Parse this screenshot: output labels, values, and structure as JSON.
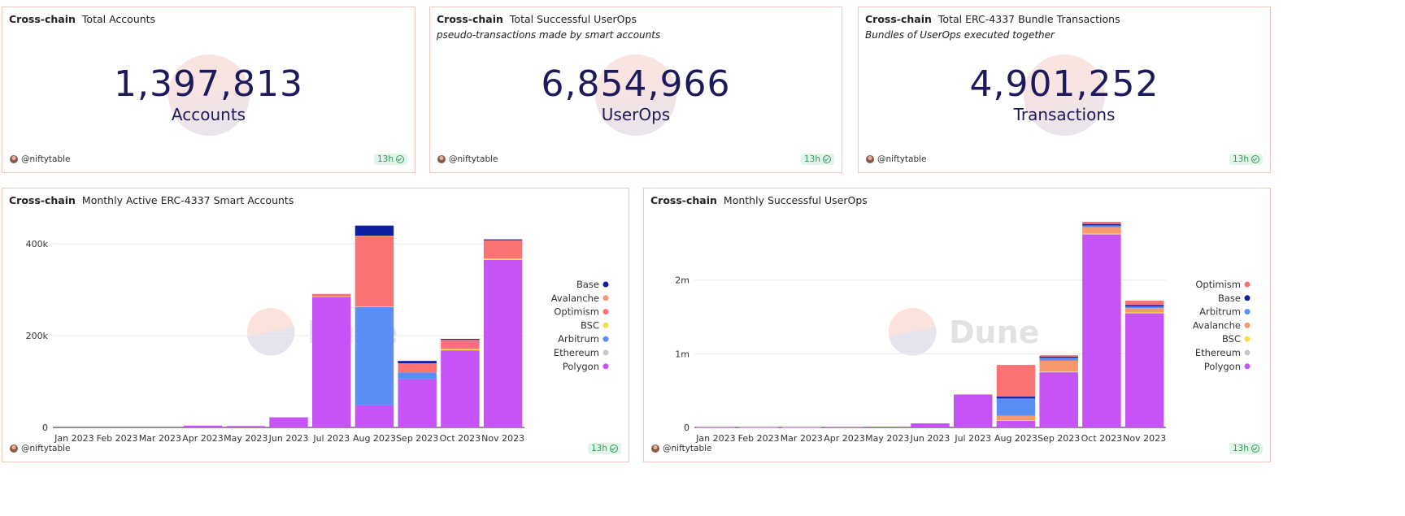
{
  "author": "@niftytable",
  "freshness": "13h",
  "counters": [
    {
      "chain": "Cross-chain",
      "title": "Total Accounts",
      "subtitle": "",
      "value": "1,397,813",
      "unit": "Accounts"
    },
    {
      "chain": "Cross-chain",
      "title": "Total Successful UserOps",
      "subtitle": "pseudo-transactions made by smart accounts",
      "value": "6,854,966",
      "unit": "UserOps"
    },
    {
      "chain": "Cross-chain",
      "title": "Total ERC-4337 Bundle Transactions",
      "subtitle": "Bundles of UserOps executed together",
      "value": "4,901,252",
      "unit": "Transactions"
    }
  ],
  "watermark": "Dune",
  "chart_data": [
    {
      "type": "bar",
      "stacked": true,
      "chain": "Cross-chain",
      "title": "Monthly Active ERC-4337 Smart Accounts",
      "categories": [
        "Jan 2023",
        "Feb 2023",
        "Mar 2023",
        "Apr 2023",
        "May 2023",
        "Jun 2023",
        "Jul 2023",
        "Aug 2023",
        "Sep 2023",
        "Oct 2023",
        "Nov 2023"
      ],
      "ylim": [
        0,
        450000
      ],
      "yticks": [
        0,
        200000,
        400000
      ],
      "ytick_labels": [
        "0",
        "200k",
        "400k"
      ],
      "legend_position": "right",
      "legend_order": [
        "Base",
        "Avalanche",
        "Optimism",
        "BSC",
        "Arbitrum",
        "Ethereum",
        "Polygon"
      ],
      "stack_order": [
        "Polygon",
        "Ethereum",
        "Arbitrum",
        "BSC",
        "Optimism",
        "Avalanche",
        "Base"
      ],
      "series": [
        {
          "name": "Polygon",
          "color": "#c653f5",
          "values": [
            0,
            0,
            0,
            4000,
            3000,
            22000,
            285000,
            48000,
            105000,
            168000,
            365000
          ]
        },
        {
          "name": "Ethereum",
          "color": "#c8c8c8",
          "values": [
            0,
            0,
            0,
            0,
            0,
            0,
            0,
            0,
            0,
            0,
            0
          ]
        },
        {
          "name": "Arbitrum",
          "color": "#5b8ef5",
          "values": [
            0,
            0,
            0,
            0,
            0,
            0,
            0,
            215000,
            15000,
            0,
            0
          ]
        },
        {
          "name": "BSC",
          "color": "#f3e04a",
          "values": [
            0,
            0,
            0,
            0,
            0,
            0,
            1000,
            1000,
            0,
            3000,
            3000
          ]
        },
        {
          "name": "Optimism",
          "color": "#fb7272",
          "values": [
            0,
            0,
            0,
            0,
            0,
            0,
            5000,
            153000,
            20000,
            20000,
            40000
          ]
        },
        {
          "name": "Avalanche",
          "color": "#f8996d",
          "values": [
            0,
            0,
            0,
            0,
            0,
            0,
            0,
            1000,
            0,
            0,
            0
          ]
        },
        {
          "name": "Base",
          "color": "#0f1fa3",
          "values": [
            0,
            0,
            0,
            0,
            0,
            0,
            0,
            22000,
            5000,
            2000,
            2000
          ]
        }
      ]
    },
    {
      "type": "bar",
      "stacked": true,
      "chain": "Cross-chain",
      "title": "Monthly Successful UserOps",
      "categories": [
        "Jan 2023",
        "Feb 2023",
        "Mar 2023",
        "Apr 2023",
        "May 2023",
        "Jun 2023",
        "Jul 2023",
        "Aug 2023",
        "Sep 2023",
        "Oct 2023",
        "Nov 2023"
      ],
      "ylim": [
        0,
        2800000
      ],
      "yticks": [
        0,
        1000000,
        2000000
      ],
      "ytick_labels": [
        "0",
        "1m",
        "2m"
      ],
      "legend_position": "right",
      "legend_order": [
        "Optimism",
        "Base",
        "Arbitrum",
        "Avalanche",
        "BSC",
        "Ethereum",
        "Polygon"
      ],
      "stack_order": [
        "Polygon",
        "Ethereum",
        "BSC",
        "Avalanche",
        "Arbitrum",
        "Base",
        "Optimism"
      ],
      "series": [
        {
          "name": "Polygon",
          "color": "#c653f5",
          "values": [
            2000,
            3000,
            3000,
            8000,
            10000,
            55000,
            450000,
            95000,
            750000,
            2620000,
            1550000
          ]
        },
        {
          "name": "Ethereum",
          "color": "#c8c8c8",
          "values": [
            0,
            0,
            0,
            0,
            0,
            0,
            0,
            0,
            5000,
            5000,
            5000
          ]
        },
        {
          "name": "BSC",
          "color": "#f3e04a",
          "values": [
            0,
            0,
            0,
            0,
            0,
            0,
            3000,
            3000,
            5000,
            5000,
            5000
          ]
        },
        {
          "name": "Avalanche",
          "color": "#f8996d",
          "values": [
            0,
            0,
            0,
            0,
            0,
            0,
            0,
            60000,
            145000,
            85000,
            60000
          ]
        },
        {
          "name": "Arbitrum",
          "color": "#5b8ef5",
          "values": [
            0,
            0,
            0,
            0,
            0,
            0,
            0,
            235000,
            40000,
            25000,
            20000
          ]
        },
        {
          "name": "Base",
          "color": "#0f1fa3",
          "values": [
            0,
            0,
            0,
            0,
            0,
            0,
            0,
            25000,
            15000,
            20000,
            20000
          ]
        },
        {
          "name": "Optimism",
          "color": "#fb7272",
          "values": [
            0,
            0,
            0,
            0,
            0,
            0,
            0,
            430000,
            20000,
            30000,
            60000
          ]
        }
      ]
    }
  ]
}
